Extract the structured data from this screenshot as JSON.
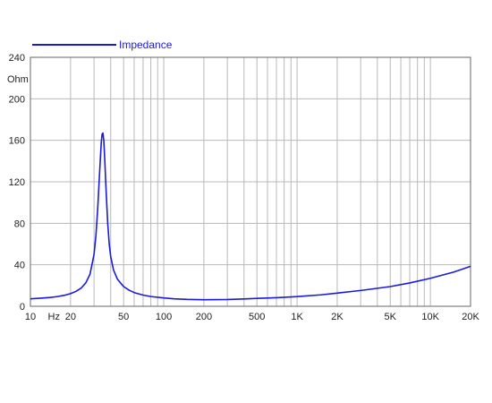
{
  "chart_data": {
    "type": "line",
    "title": "",
    "xlabel": "",
    "ylabel": "Ohm",
    "x_scale": "log",
    "xlim": [
      10,
      20000
    ],
    "ylim": [
      0,
      240
    ],
    "grid": true,
    "legend_position": "top-left",
    "y_ticks": [
      "0",
      "40",
      "80",
      "120",
      "160",
      "200",
      "240"
    ],
    "x_tick_labels": [
      {
        "value": 10,
        "label": "10"
      },
      {
        "value": 15,
        "label": "Hz"
      },
      {
        "value": 20,
        "label": "20"
      },
      {
        "value": 50,
        "label": "50"
      },
      {
        "value": 100,
        "label": "100"
      },
      {
        "value": 200,
        "label": "200"
      },
      {
        "value": 500,
        "label": "500"
      },
      {
        "value": 1000,
        "label": "1K"
      },
      {
        "value": 2000,
        "label": "2K"
      },
      {
        "value": 5000,
        "label": "5K"
      },
      {
        "value": 10000,
        "label": "10K"
      },
      {
        "value": 20000,
        "label": "20K"
      }
    ],
    "series": [
      {
        "name": "Impedance",
        "color": "#1a1adc",
        "points": [
          [
            10,
            7.2
          ],
          [
            12,
            7.8
          ],
          [
            14,
            8.5
          ],
          [
            16,
            9.4
          ],
          [
            18,
            10.6
          ],
          [
            20,
            12.2
          ],
          [
            22,
            14.4
          ],
          [
            24,
            17.5
          ],
          [
            26,
            22.5
          ],
          [
            28,
            31
          ],
          [
            30,
            50
          ],
          [
            31,
            68
          ],
          [
            32,
            95
          ],
          [
            33,
            128
          ],
          [
            34,
            158
          ],
          [
            34.5,
            166
          ],
          [
            35,
            167
          ],
          [
            35.5,
            160
          ],
          [
            36,
            145
          ],
          [
            37,
            110
          ],
          [
            38,
            80
          ],
          [
            39,
            60
          ],
          [
            40,
            48
          ],
          [
            42,
            35
          ],
          [
            45,
            26
          ],
          [
            50,
            19
          ],
          [
            55,
            15.5
          ],
          [
            60,
            13.2
          ],
          [
            70,
            10.8
          ],
          [
            80,
            9.4
          ],
          [
            100,
            8
          ],
          [
            120,
            7.2
          ],
          [
            150,
            6.6
          ],
          [
            200,
            6.3
          ],
          [
            300,
            6.5
          ],
          [
            400,
            7.1
          ],
          [
            500,
            7.6
          ],
          [
            700,
            8.3
          ],
          [
            1000,
            9.3
          ],
          [
            1500,
            11
          ],
          [
            2000,
            12.7
          ],
          [
            3000,
            15.2
          ],
          [
            5000,
            19
          ],
          [
            7000,
            22.5
          ],
          [
            10000,
            27
          ],
          [
            15000,
            33
          ],
          [
            20000,
            38.5
          ]
        ]
      }
    ]
  }
}
